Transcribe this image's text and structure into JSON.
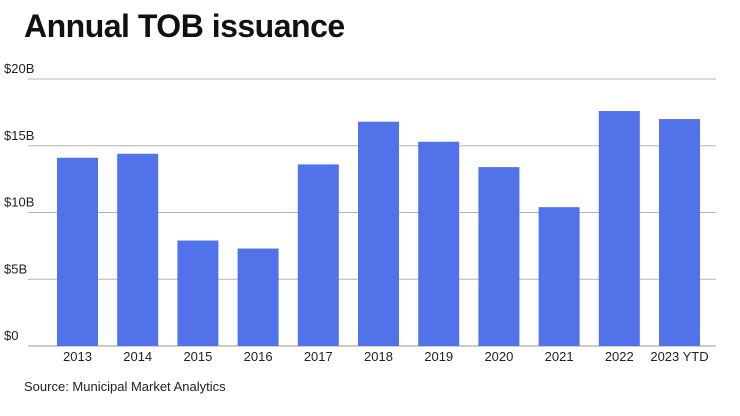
{
  "chart_data": {
    "type": "bar",
    "title": "Annual TOB issuance",
    "source": "Source: Municipal Market Analytics",
    "xlabel": "",
    "ylabel": "",
    "categories": [
      "2013",
      "2014",
      "2015",
      "2016",
      "2017",
      "2018",
      "2019",
      "2020",
      "2021",
      "2022",
      "2023 YTD"
    ],
    "values": [
      14.1,
      14.4,
      7.9,
      7.3,
      13.6,
      16.8,
      15.3,
      13.4,
      10.4,
      17.6,
      17.0
    ],
    "ylim": [
      0,
      20
    ],
    "yticks": [
      0,
      5,
      10,
      15,
      20
    ],
    "ytick_labels": [
      "$0",
      "$5B",
      "$10B",
      "$15B",
      "$20B"
    ],
    "grid": true,
    "bar_color": "#5272ea",
    "grid_color": "#b3b3b3"
  }
}
